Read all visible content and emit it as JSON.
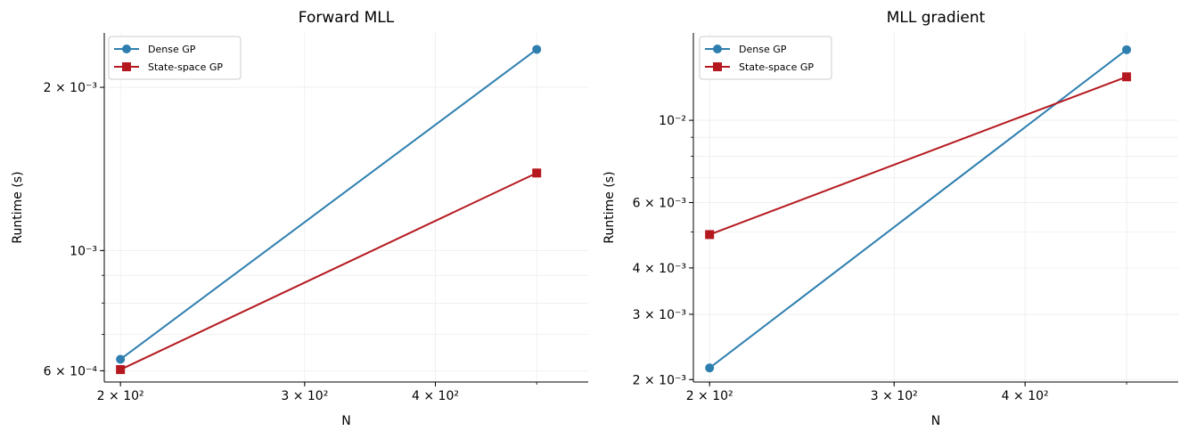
{
  "chart_data": [
    {
      "type": "line",
      "title": "Forward MLL",
      "xlabel": "N",
      "ylabel": "Runtime (s)",
      "xscale": "log",
      "yscale": "log",
      "grid": true,
      "legend": "top-left",
      "x": [
        200,
        500
      ],
      "xlim": [
        193,
        560
      ],
      "ylim": [
        0.000572,
        0.00252
      ],
      "xticks": [
        {
          "value": 200,
          "label": "2 × 10²"
        },
        {
          "value": 300,
          "label": "3 × 10²"
        },
        {
          "value": 400,
          "label": "4 × 10²"
        }
      ],
      "yticks": [
        {
          "value": 0.0006,
          "label": "6 × 10⁻⁴"
        },
        {
          "value": 0.001,
          "label": "10⁻³"
        },
        {
          "value": 0.002,
          "label": "2 × 10⁻³"
        }
      ],
      "series": [
        {
          "name": "Dense GP",
          "color": "#2e7fb0",
          "marker": "circle",
          "values": [
            0.00063,
            0.00235
          ]
        },
        {
          "name": "State-space GP",
          "color": "#b5191f",
          "marker": "square",
          "values": [
            0.000603,
            0.00139
          ]
        }
      ]
    },
    {
      "type": "line",
      "title": "MLL gradient",
      "xlabel": "N",
      "ylabel": "Runtime (s)",
      "xscale": "log",
      "yscale": "log",
      "grid": true,
      "legend": "top-left",
      "x": [
        200,
        500
      ],
      "xlim": [
        193,
        560
      ],
      "ylim": [
        0.00197,
        0.0172
      ],
      "xticks": [
        {
          "value": 200,
          "label": "2 × 10²"
        },
        {
          "value": 300,
          "label": "3 × 10²"
        },
        {
          "value": 400,
          "label": "4 × 10²"
        }
      ],
      "yticks": [
        {
          "value": 0.002,
          "label": "2 × 10⁻³"
        },
        {
          "value": 0.003,
          "label": "3 × 10⁻³"
        },
        {
          "value": 0.004,
          "label": "4 × 10⁻³"
        },
        {
          "value": 0.006,
          "label": "6 × 10⁻³"
        },
        {
          "value": 0.01,
          "label": "10⁻²"
        }
      ],
      "series": [
        {
          "name": "Dense GP",
          "color": "#2e7fb0",
          "marker": "circle",
          "values": [
            0.00215,
            0.0155
          ]
        },
        {
          "name": "State-space GP",
          "color": "#b5191f",
          "marker": "square",
          "values": [
            0.00492,
            0.0131
          ]
        }
      ]
    }
  ]
}
